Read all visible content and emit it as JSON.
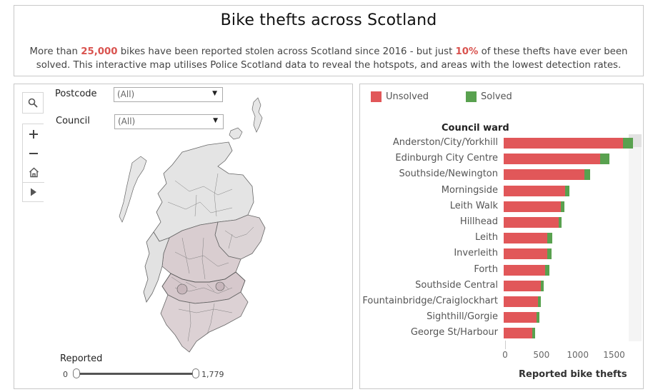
{
  "header": {
    "title": "Bike thefts across Scotland",
    "desc_part1": "More than ",
    "desc_hl1": "25,000",
    "desc_part2": " bikes have been reported stolen across Scotland since 2016 - but just ",
    "desc_hl2": "10%",
    "desc_part3": " of these thefts have ever been solved. This interactive map utilises Police Scotland data to reveal the hotspots, and areas with the lowest detection rates."
  },
  "map": {
    "toolbar": {
      "search_icon": "search-icon",
      "zoom_in_icon": "plus-icon",
      "zoom_out_icon": "minus-icon",
      "home_icon": "home-icon",
      "play_icon": "play-icon"
    },
    "filters": {
      "postcode_label": "Postcode",
      "postcode_value": "(All)",
      "council_label": "Council",
      "council_value": "(All)"
    },
    "slider": {
      "label": "Reported",
      "min": "0",
      "max": "1,779"
    }
  },
  "chart": {
    "legend": [
      {
        "label": "Unsolved",
        "color": "#e15759"
      },
      {
        "label": "Solved",
        "color": "#59a14f"
      }
    ],
    "ward_header": "Council ward",
    "axis_title": "Reported bike thefts"
  },
  "chart_data": {
    "type": "bar",
    "orientation": "horizontal",
    "stacked": true,
    "ylabel": "Council ward",
    "xlabel": "Reported bike thefts",
    "xlim": [
      0,
      1950
    ],
    "xticks": [
      "0",
      "500",
      "1000",
      "1500"
    ],
    "categories": [
      "Anderston/City/Yorkhill",
      "Edinburgh City Centre",
      "Southside/Newington",
      "Morningside",
      "Leith Walk",
      "Hillhead",
      "Leith",
      "Inverleith",
      "Forth",
      "Southside Central",
      "Fountainbridge/Craiglockhart",
      "Sighthill/Gorgie",
      "George St/Harbour"
    ],
    "series": [
      {
        "name": "Unsolved",
        "color": "#e15759",
        "values": [
          1640,
          1330,
          1115,
          845,
          785,
          755,
          600,
          600,
          570,
          510,
          470,
          455,
          395
        ]
      },
      {
        "name": "Solved",
        "color": "#59a14f",
        "values": [
          140,
          125,
          75,
          55,
          55,
          45,
          65,
          55,
          60,
          40,
          40,
          40,
          40
        ]
      }
    ]
  }
}
